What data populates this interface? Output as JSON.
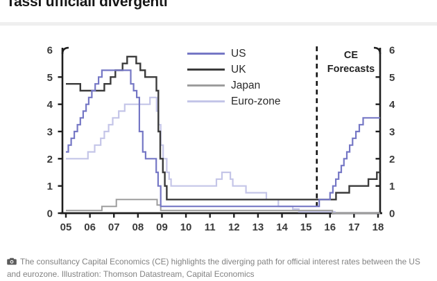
{
  "page": {
    "title": "Tassi ufficiali divergenti",
    "caption": {
      "icon": "camera-icon",
      "text": "The consultancy Capital Economics (CE) highlights the diverging path for official interest rates between the US and eurozone. Illustration: Thomson Datastream, Capital Economics"
    }
  },
  "chart_data": {
    "type": "line",
    "line_style": "step-after",
    "title": "Tassi ufficiali divergenti",
    "xlabel": "",
    "ylabel": "",
    "x_ticks": [
      "05",
      "06",
      "07",
      "08",
      "09",
      "10",
      "11",
      "12",
      "13",
      "14",
      "15",
      "16",
      "17",
      "18"
    ],
    "x_range": [
      2005,
      2018.1
    ],
    "y_ticks": [
      0,
      1,
      2,
      3,
      4,
      5,
      6
    ],
    "ylim": [
      0,
      6
    ],
    "dual_axis": true,
    "grid": false,
    "legend_position": "top-center",
    "forecast_divider_x": 2015.45,
    "forecast_label": [
      "CE",
      "Forecasts"
    ],
    "axis_color": "#1e1e1e",
    "tick_label_color": "#3a3a3a",
    "series": [
      {
        "name": "US",
        "color": "#7577c5",
        "width": 2.2,
        "values": [
          [
            2005,
            2.25
          ],
          [
            2005.1,
            2.5
          ],
          [
            2005.22,
            2.75
          ],
          [
            2005.35,
            3
          ],
          [
            2005.48,
            3.25
          ],
          [
            2005.6,
            3.5
          ],
          [
            2005.72,
            3.75
          ],
          [
            2005.84,
            4
          ],
          [
            2005.95,
            4.25
          ],
          [
            2006.08,
            4.5
          ],
          [
            2006.22,
            4.75
          ],
          [
            2006.36,
            5
          ],
          [
            2006.5,
            5.25
          ],
          [
            2007.7,
            4.75
          ],
          [
            2007.82,
            4.5
          ],
          [
            2007.95,
            4.25
          ],
          [
            2008.06,
            3
          ],
          [
            2008.2,
            2.25
          ],
          [
            2008.32,
            2
          ],
          [
            2008.76,
            1.5
          ],
          [
            2008.84,
            1
          ],
          [
            2008.95,
            0.25
          ],
          [
            2015.55,
            0.5
          ],
          [
            2016,
            0.75
          ],
          [
            2016.12,
            1
          ],
          [
            2016.24,
            1.25
          ],
          [
            2016.36,
            1.5
          ],
          [
            2016.47,
            1.75
          ],
          [
            2016.58,
            2
          ],
          [
            2016.7,
            2.25
          ],
          [
            2016.82,
            2.5
          ],
          [
            2016.94,
            2.75
          ],
          [
            2017.08,
            3
          ],
          [
            2017.22,
            3.25
          ],
          [
            2017.38,
            3.5
          ]
        ]
      },
      {
        "name": "UK",
        "color": "#3b3b3b",
        "width": 2.4,
        "values": [
          [
            2005,
            4.75
          ],
          [
            2005.6,
            4.5
          ],
          [
            2006.6,
            4.75
          ],
          [
            2006.86,
            5
          ],
          [
            2007.06,
            5.25
          ],
          [
            2007.36,
            5.5
          ],
          [
            2007.55,
            5.75
          ],
          [
            2007.93,
            5.5
          ],
          [
            2008.1,
            5.25
          ],
          [
            2008.3,
            5
          ],
          [
            2008.77,
            4.5
          ],
          [
            2008.85,
            3
          ],
          [
            2008.93,
            2
          ],
          [
            2009.04,
            1.5
          ],
          [
            2009.12,
            1
          ],
          [
            2009.2,
            0.5
          ],
          [
            2016.25,
            0.75
          ],
          [
            2016.8,
            1
          ],
          [
            2017.6,
            1.25
          ],
          [
            2017.95,
            1.5
          ]
        ]
      },
      {
        "name": "Japan",
        "color": "#9d9d9d",
        "width": 2.0,
        "values": [
          [
            2005,
            0.1
          ],
          [
            2006.5,
            0.25
          ],
          [
            2007.1,
            0.5
          ],
          [
            2008.8,
            0.3
          ],
          [
            2008.95,
            0.1
          ],
          [
            2016.1,
            0
          ]
        ]
      },
      {
        "name": "Euro-zone",
        "color": "#c4c5e8",
        "width": 2.2,
        "values": [
          [
            2005,
            2
          ],
          [
            2005.92,
            2.25
          ],
          [
            2006.2,
            2.5
          ],
          [
            2006.45,
            2.75
          ],
          [
            2006.6,
            3
          ],
          [
            2006.78,
            3.25
          ],
          [
            2006.95,
            3.5
          ],
          [
            2007.2,
            3.75
          ],
          [
            2007.45,
            4
          ],
          [
            2008.5,
            4.25
          ],
          [
            2008.78,
            3.75
          ],
          [
            2008.86,
            3.25
          ],
          [
            2008.95,
            2.5
          ],
          [
            2009.05,
            2
          ],
          [
            2009.2,
            1.5
          ],
          [
            2009.3,
            1.25
          ],
          [
            2009.38,
            1
          ],
          [
            2011.27,
            1.25
          ],
          [
            2011.5,
            1.5
          ],
          [
            2011.85,
            1.25
          ],
          [
            2011.95,
            1
          ],
          [
            2012.5,
            0.75
          ],
          [
            2013.35,
            0.5
          ],
          [
            2013.85,
            0.25
          ],
          [
            2014.45,
            0.15
          ],
          [
            2014.7,
            0.05
          ],
          [
            2016.2,
            0
          ]
        ]
      }
    ]
  }
}
